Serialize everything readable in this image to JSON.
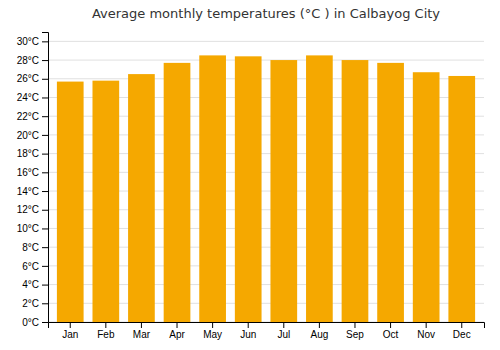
{
  "chart_data": {
    "type": "bar",
    "title": "Average monthly temperatures (°C ) in Calbayog City",
    "categories": [
      "Jan",
      "Feb",
      "Mar",
      "Apr",
      "May",
      "Jun",
      "Jul",
      "Aug",
      "Sep",
      "Oct",
      "Nov",
      "Dec"
    ],
    "values": [
      25.7,
      25.8,
      26.5,
      27.7,
      28.5,
      28.4,
      28.0,
      28.5,
      28.0,
      27.7,
      26.7,
      26.3
    ],
    "color": "#F5A800",
    "ylim": [
      0,
      31
    ],
    "yticks": [
      {
        "value": 0,
        "label": "0°C"
      },
      {
        "value": 2,
        "label": "2°C"
      },
      {
        "value": 4,
        "label": "4°C"
      },
      {
        "value": 6,
        "label": "6°C"
      },
      {
        "value": 8,
        "label": "8°C"
      },
      {
        "value": 10,
        "label": "10°C"
      },
      {
        "value": 12,
        "label": "12°C"
      },
      {
        "value": 14,
        "label": "14°C"
      },
      {
        "value": 16,
        "label": "16°C"
      },
      {
        "value": 18,
        "label": "18°C"
      },
      {
        "value": 20,
        "label": "20°C"
      },
      {
        "value": 22,
        "label": "22°C"
      },
      {
        "value": 24,
        "label": "24°C"
      },
      {
        "value": 26,
        "label": "26°C"
      },
      {
        "value": 28,
        "label": "28°C"
      },
      {
        "value": 30,
        "label": "30°C"
      }
    ],
    "grid": true
  }
}
